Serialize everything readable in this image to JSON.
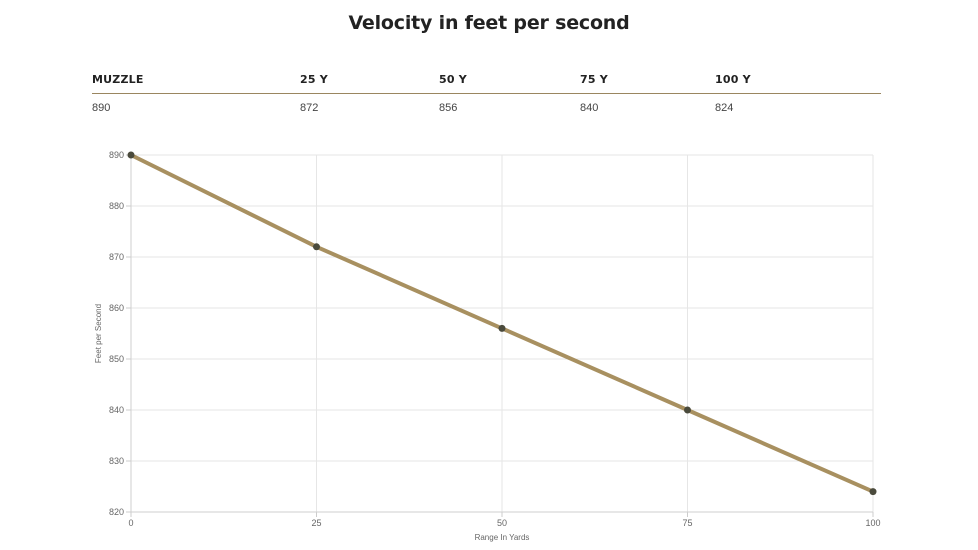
{
  "title": "Velocity in feet per second",
  "table": {
    "headers": [
      "MUZZLE",
      "25 Y",
      "50 Y",
      "75 Y",
      "100 Y"
    ],
    "values": [
      "890",
      "872",
      "856",
      "840",
      "824"
    ]
  },
  "chart_data": {
    "type": "line",
    "title": "",
    "xlabel": "Range In Yards",
    "ylabel": "Feet per Second",
    "x": [
      0,
      25,
      50,
      75,
      100
    ],
    "y": [
      890,
      872,
      856,
      840,
      824
    ],
    "xlim": [
      0,
      100
    ],
    "ylim": [
      820,
      890
    ],
    "xticks": [
      0,
      25,
      50,
      75,
      100
    ],
    "yticks": [
      820,
      830,
      840,
      850,
      860,
      870,
      880,
      890
    ],
    "grid": true,
    "line_color": "#a89060",
    "point_color": "#4a4a3c"
  }
}
